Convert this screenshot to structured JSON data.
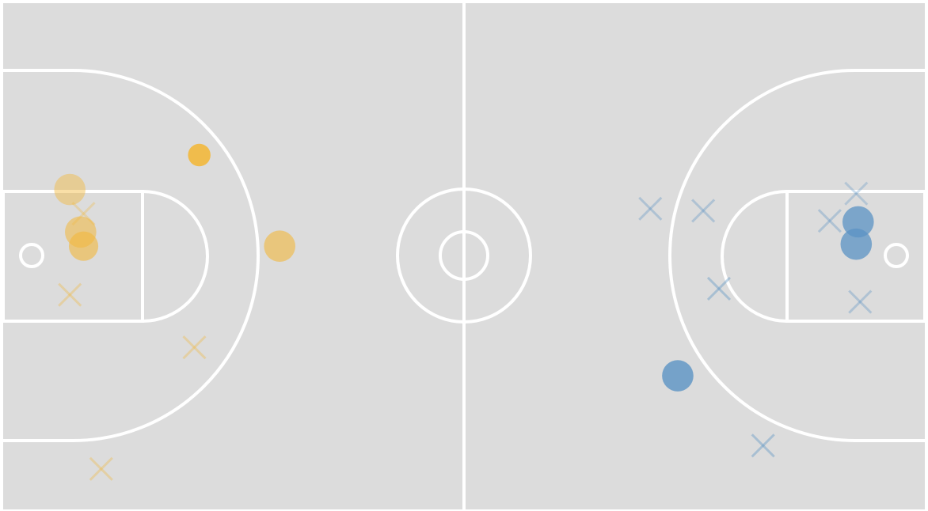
{
  "colors": {
    "background": "#ffffff",
    "court": "#dcdcdc",
    "lines": "#ffffff",
    "team_left": "#f2b83c",
    "team_right": "#5b93c4"
  },
  "chart_data": {
    "type": "scatter",
    "title": "",
    "xlabel": "",
    "ylabel": "",
    "xlim": [
      0,
      94
    ],
    "ylim": [
      0,
      50
    ],
    "grid": false,
    "series": [
      {
        "team": "left",
        "color": "#f2b83c",
        "made": [
          {
            "x": 6.8,
            "y": 31.6,
            "size": 1.6,
            "opacity": 0.45
          },
          {
            "x": 7.9,
            "y": 27.4,
            "size": 1.6,
            "opacity": 0.55
          },
          {
            "x": 8.2,
            "y": 26.0,
            "size": 1.5,
            "opacity": 0.6
          },
          {
            "x": 20.0,
            "y": 35.0,
            "size": 1.15,
            "opacity": 0.9
          },
          {
            "x": 28.2,
            "y": 26.0,
            "size": 1.6,
            "opacity": 0.6
          }
        ],
        "missed": [
          {
            "x": 6.8,
            "y": 21.2,
            "opacity": 0.35
          },
          {
            "x": 8.2,
            "y": 29.2,
            "opacity": 0.3
          },
          {
            "x": 19.5,
            "y": 16.0,
            "opacity": 0.35
          },
          {
            "x": 10.0,
            "y": 4.0,
            "opacity": 0.35
          }
        ]
      },
      {
        "team": "right",
        "color": "#5b93c4",
        "made": [
          {
            "x": 87.2,
            "y": 28.4,
            "size": 1.6,
            "opacity": 0.75
          },
          {
            "x": 87.0,
            "y": 26.2,
            "size": 1.6,
            "opacity": 0.75
          },
          {
            "x": 68.8,
            "y": 13.2,
            "size": 1.6,
            "opacity": 0.8
          }
        ],
        "missed": [
          {
            "x": 66.0,
            "y": 29.7,
            "opacity": 0.35
          },
          {
            "x": 71.4,
            "y": 29.5,
            "opacity": 0.35
          },
          {
            "x": 87.0,
            "y": 31.2,
            "opacity": 0.3
          },
          {
            "x": 84.3,
            "y": 28.5,
            "opacity": 0.35
          },
          {
            "x": 73.0,
            "y": 21.8,
            "opacity": 0.4
          },
          {
            "x": 87.4,
            "y": 20.5,
            "opacity": 0.35
          },
          {
            "x": 77.5,
            "y": 6.3,
            "opacity": 0.4
          }
        ]
      }
    ]
  }
}
